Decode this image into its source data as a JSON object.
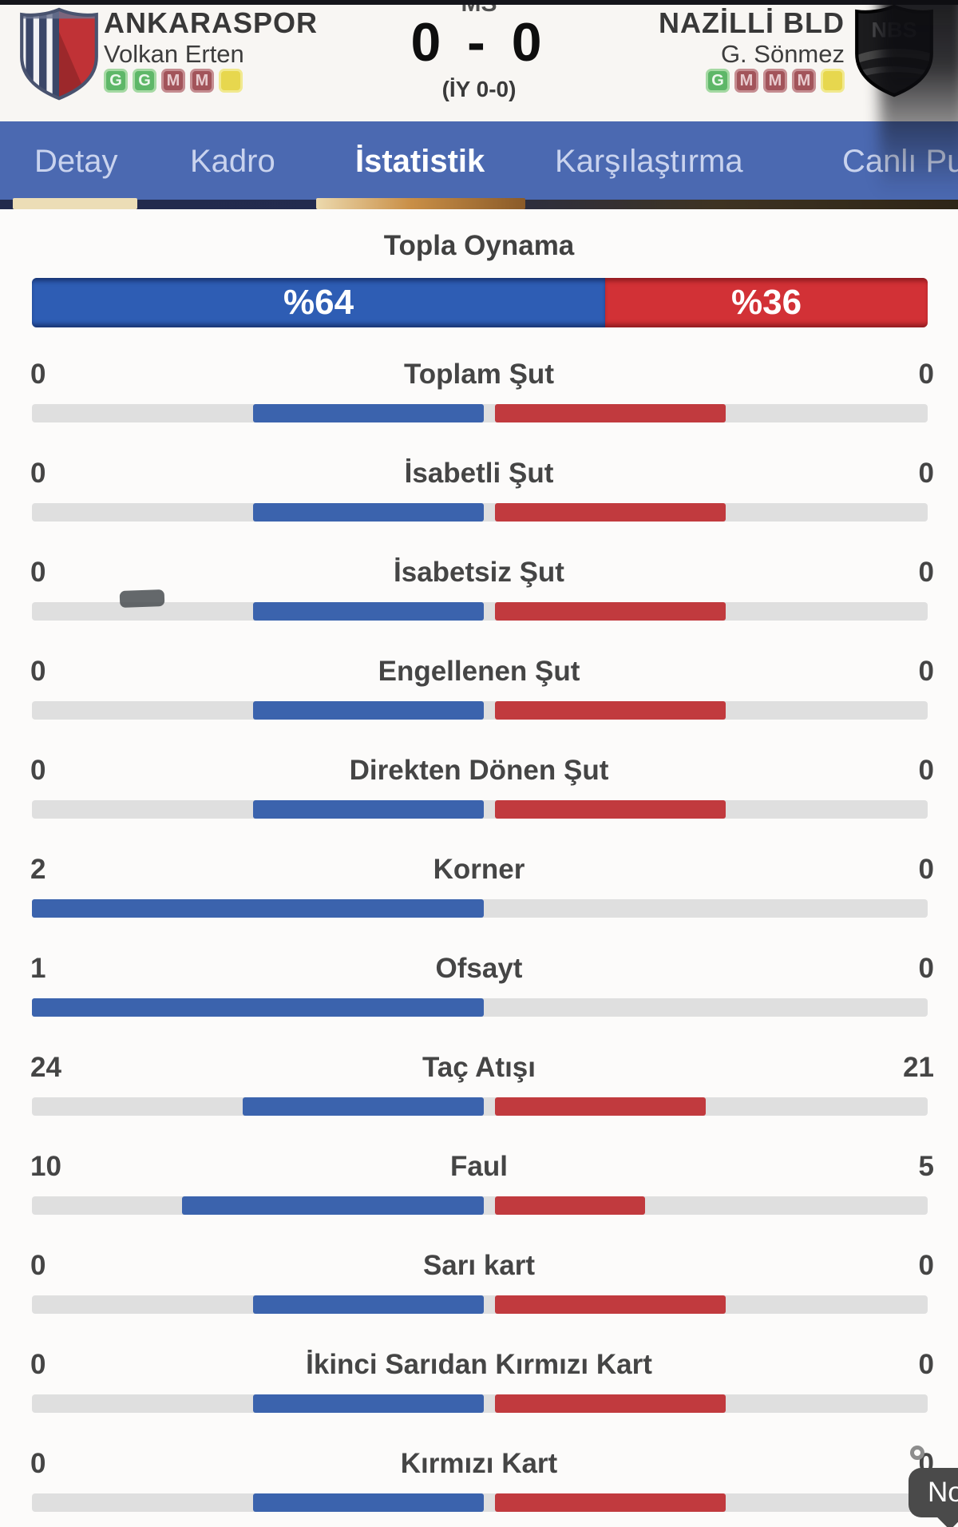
{
  "match": {
    "period_label": "MS",
    "score": "0 - 0",
    "half_time": "(İY 0-0)",
    "home": {
      "name": "ANKARASPOR",
      "manager": "Volkan Erten",
      "crest": "ankaraspor-crest",
      "form": [
        {
          "letter": "G",
          "result": "win"
        },
        {
          "letter": "G",
          "result": "win"
        },
        {
          "letter": "M",
          "result": "loss"
        },
        {
          "letter": "M",
          "result": "loss"
        },
        {
          "letter": "",
          "result": "draw"
        }
      ]
    },
    "away": {
      "name": "NAZİLLİ BLD",
      "manager": "G. Sönmez",
      "crest": "nbs-crest",
      "form": [
        {
          "letter": "G",
          "result": "win"
        },
        {
          "letter": "M",
          "result": "loss"
        },
        {
          "letter": "M",
          "result": "loss"
        },
        {
          "letter": "M",
          "result": "loss"
        },
        {
          "letter": "",
          "result": "draw"
        }
      ]
    }
  },
  "tabs": [
    {
      "label": "Detay",
      "active": false
    },
    {
      "label": "Kadro",
      "active": false
    },
    {
      "label": "İstatistik",
      "active": true
    },
    {
      "label": "Karşılaştırma",
      "active": false
    },
    {
      "label": "Canlı Pu",
      "active": false
    }
  ],
  "possession": {
    "title": "Topla Oynama",
    "home_label": "%64",
    "away_label": "%36",
    "home_pct": 64,
    "away_pct": 36
  },
  "stats": [
    {
      "label": "Toplam Şut",
      "home": "0",
      "away": "0",
      "home_bar": 0.51,
      "away_bar": 0.51
    },
    {
      "label": "İsabetli Şut",
      "home": "0",
      "away": "0",
      "home_bar": 0.51,
      "away_bar": 0.51
    },
    {
      "label": "İsabetsiz Şut",
      "home": "0",
      "away": "0",
      "home_bar": 0.51,
      "away_bar": 0.51
    },
    {
      "label": "Engellenen Şut",
      "home": "0",
      "away": "0",
      "home_bar": 0.51,
      "away_bar": 0.51
    },
    {
      "label": "Direkten Dönen Şut",
      "home": "0",
      "away": "0",
      "home_bar": 0.51,
      "away_bar": 0.51
    },
    {
      "label": "Korner",
      "home": "2",
      "away": "0",
      "home_bar": 1.0,
      "away_bar": 0
    },
    {
      "label": "Ofsayt",
      "home": "1",
      "away": "0",
      "home_bar": 1.0,
      "away_bar": 0
    },
    {
      "label": "Taç Atışı",
      "home": "24",
      "away": "21",
      "home_bar": 0.533,
      "away_bar": 0.467
    },
    {
      "label": "Faul",
      "home": "10",
      "away": "5",
      "home_bar": 0.667,
      "away_bar": 0.333
    },
    {
      "label": "Sarı kart",
      "home": "0",
      "away": "0",
      "home_bar": 0.51,
      "away_bar": 0.51
    },
    {
      "label": "İkinci Sarıdan Kırmızı Kart",
      "home": "0",
      "away": "0",
      "home_bar": 0.51,
      "away_bar": 0.51
    },
    {
      "label": "Kırmızı Kart",
      "home": "0",
      "away": "0",
      "home_bar": 0.51,
      "away_bar": 0.51
    }
  ],
  "note": {
    "label": "Not"
  },
  "colors": {
    "home_bar": "#3b63ad",
    "away_bar": "#c13a3e",
    "possession_home": "#2e5db4",
    "possession_away": "#d23136",
    "track": "#dfdfdf",
    "tabbar": "#4b69b1",
    "active_underline": "#c98f47"
  }
}
